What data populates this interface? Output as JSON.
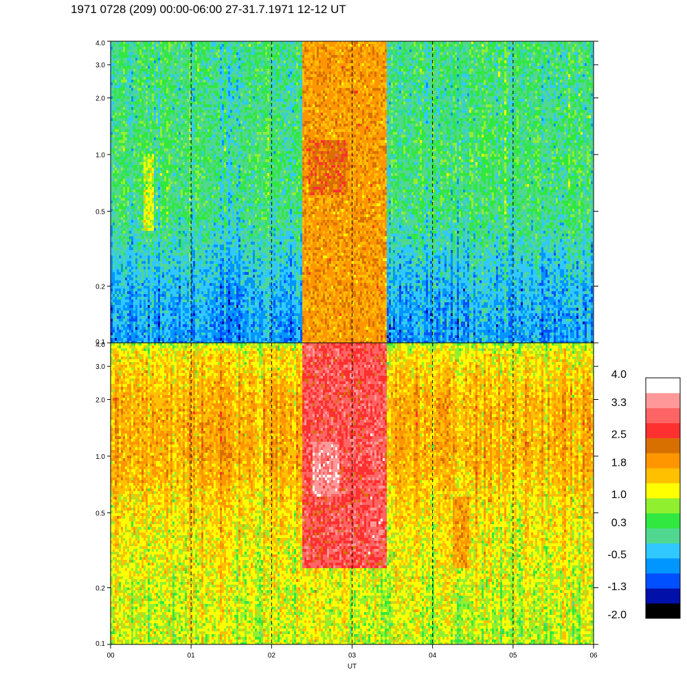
{
  "title": "1971 0728 (209) 00:00-06:00 27-31.7.1971  12-12 UT",
  "chart_data": {
    "type": "heatmap",
    "panels": [
      {
        "name": "",
        "y_ticks": [
          {
            "value": 0.1,
            "label": "0.1"
          },
          {
            "value": 0.2,
            "label": "0.2"
          },
          {
            "value": 0.5,
            "label": "0.5"
          },
          {
            "value": 1.0,
            "label": "1.0"
          },
          {
            "value": 2.0,
            "label": "2.0"
          },
          {
            "value": 3.0,
            "label": "3.0"
          },
          {
            "value": 4.0,
            "label": "4.0"
          }
        ],
        "ylim": [
          0.1,
          4.0
        ],
        "yscale": "log",
        "level_profile": [
          {
            "y": 0.1,
            "level": -0.7
          },
          {
            "y": 0.2,
            "level": -0.45
          },
          {
            "y": 0.5,
            "level": 0.15
          },
          {
            "y": 1.0,
            "level": 0.25
          },
          {
            "y": 2.0,
            "level": 0.1
          },
          {
            "y": 4.0,
            "level": 0.2
          }
        ],
        "events": [
          {
            "x_start": 2.38,
            "x_end": 3.42,
            "y_min": 0.1,
            "y_max": 4.0,
            "level": 1.9
          },
          {
            "x_start": 2.45,
            "x_end": 2.95,
            "y_min": 0.6,
            "y_max": 1.2,
            "level": 2.3
          },
          {
            "x_start": 0.4,
            "x_end": 0.55,
            "y_min": 0.4,
            "y_max": 1.0,
            "level": 1.0
          }
        ]
      },
      {
        "name": "",
        "y_ticks": [
          {
            "value": 0.1,
            "label": "0.1"
          },
          {
            "value": 0.2,
            "label": "0.2"
          },
          {
            "value": 0.5,
            "label": "0.5"
          },
          {
            "value": 1.0,
            "label": "1.0"
          },
          {
            "value": 2.0,
            "label": "2.0"
          },
          {
            "value": 3.0,
            "label": "3.0"
          },
          {
            "value": 4.0,
            "label": "4.0"
          }
        ],
        "ylim": [
          0.1,
          4.0
        ],
        "yscale": "log",
        "level_profile": [
          {
            "y": 0.1,
            "level": 1.0
          },
          {
            "y": 0.2,
            "level": 1.1
          },
          {
            "y": 0.5,
            "level": 1.35
          },
          {
            "y": 1.0,
            "level": 1.75
          },
          {
            "y": 2.0,
            "level": 1.7
          },
          {
            "y": 3.5,
            "level": 1.3
          },
          {
            "y": 4.0,
            "level": 0.9
          }
        ],
        "events": [
          {
            "x_start": 2.38,
            "x_end": 3.42,
            "y_min": 0.25,
            "y_max": 4.0,
            "level": 2.9
          },
          {
            "x_start": 2.5,
            "x_end": 2.85,
            "y_min": 0.6,
            "y_max": 1.2,
            "level": 3.4
          },
          {
            "x_start": 3.2,
            "x_end": 3.4,
            "y_min": 0.3,
            "y_max": 2.0,
            "level": 3.0
          },
          {
            "x_start": 4.25,
            "x_end": 4.45,
            "y_min": 0.25,
            "y_max": 0.6,
            "level": 1.9
          }
        ]
      }
    ],
    "x_ticks": [
      {
        "value": 0,
        "label": "00"
      },
      {
        "value": 1,
        "label": "01"
      },
      {
        "value": 2,
        "label": "02"
      },
      {
        "value": 3,
        "label": "03"
      },
      {
        "value": 4,
        "label": "04"
      },
      {
        "value": 5,
        "label": "05"
      },
      {
        "value": 6,
        "label": "06"
      }
    ],
    "xlim": [
      0,
      6
    ],
    "xlabel": "UT",
    "vertical_dashed_lines_at": [
      1,
      2,
      3,
      4,
      5
    ],
    "colorbar": {
      "range": [
        -2.0,
        4.0
      ],
      "colors": [
        "#000000",
        "#0010a8",
        "#0050ff",
        "#0096ff",
        "#30c8ff",
        "#50d890",
        "#30e840",
        "#90f030",
        "#ffff00",
        "#ffc000",
        "#ff9600",
        "#d87000",
        "#ff3030",
        "#ff6464",
        "#ff9898",
        "#ffffff"
      ],
      "labels": [
        {
          "value": 4.0,
          "label": "4.0"
        },
        {
          "value": 3.3,
          "label": "3.3"
        },
        {
          "value": 2.5,
          "label": "2.5"
        },
        {
          "value": 1.8,
          "label": "1.8"
        },
        {
          "value": 1.0,
          "label": "1.0"
        },
        {
          "value": 0.3,
          "label": "0.3"
        },
        {
          "value": -0.5,
          "label": "-0.5"
        },
        {
          "value": -1.3,
          "label": "-1.3"
        },
        {
          "value": -2.0,
          "label": "-2.0"
        }
      ]
    }
  }
}
